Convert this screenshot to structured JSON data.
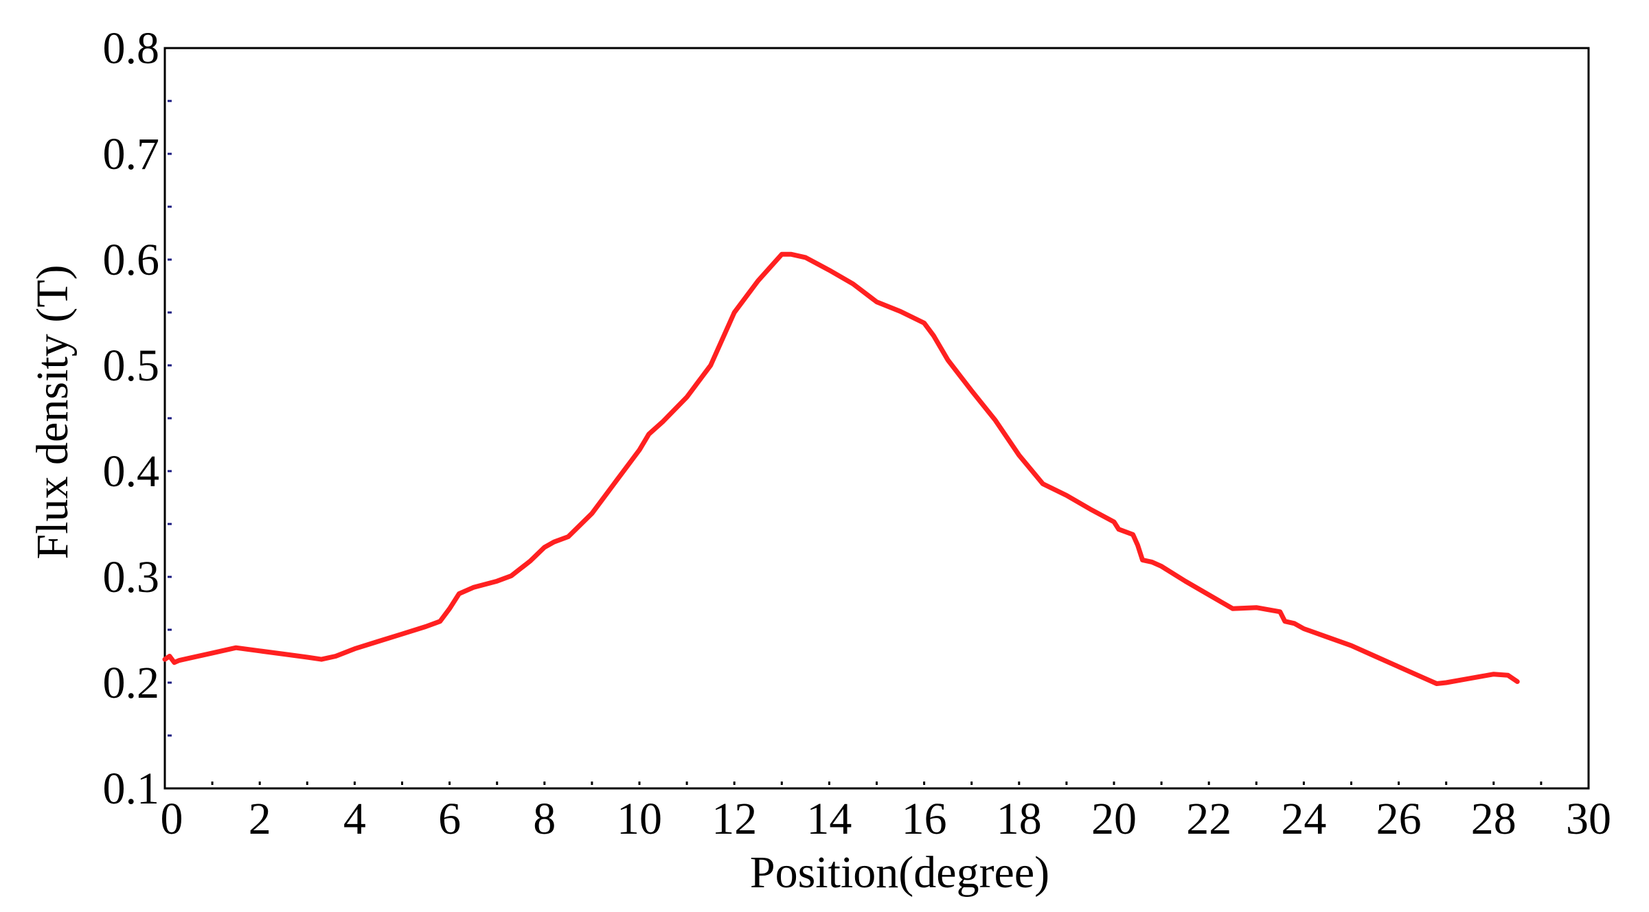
{
  "chart_data": {
    "type": "line",
    "title": "",
    "xlabel": "Position(degree)",
    "ylabel": "Flux density (T)",
    "xlim": [
      0,
      30
    ],
    "ylim": [
      0.1,
      0.8
    ],
    "x_ticks": [
      "0",
      "2",
      "4",
      "6",
      "8",
      "10",
      "12",
      "14",
      "16",
      "18",
      "20",
      "22",
      "24",
      "26",
      "28",
      "30"
    ],
    "y_ticks": [
      "0.1",
      "0.2",
      "0.3",
      "0.4",
      "0.5",
      "0.6",
      "0.7",
      "0.8"
    ],
    "grid": false,
    "colors": {
      "line": "#ff2020",
      "axes": "#000000",
      "minor_ticks": "#1a1a80"
    },
    "series": [
      {
        "x": [
          0,
          0.1,
          0.2,
          0.3,
          0.5,
          1.0,
          1.5,
          2.0,
          2.5,
          3.0,
          3.3,
          3.6,
          4.0,
          4.5,
          5.0,
          5.5,
          5.8,
          6.0,
          6.2,
          6.5,
          7.0,
          7.3,
          7.7,
          8.0,
          8.2,
          8.5,
          9.0,
          9.5,
          10.0,
          10.2,
          10.5,
          11.0,
          11.5,
          12.0,
          12.5,
          13.0,
          13.2,
          13.5,
          14.0,
          14.5,
          15.0,
          15.5,
          16.0,
          16.2,
          16.5,
          17.0,
          17.5,
          18.0,
          18.5,
          19.0,
          19.5,
          20.0,
          20.1,
          20.4,
          20.5,
          20.6,
          20.8,
          21.0,
          21.5,
          22.0,
          22.5,
          23.0,
          23.5,
          23.6,
          23.8,
          24.0,
          24.5,
          25.0,
          25.5,
          26.0,
          26.5,
          26.8,
          27.0,
          27.5,
          28.0,
          28.3,
          28.5
        ],
        "y": [
          0.222,
          0.225,
          0.219,
          0.221,
          0.223,
          0.228,
          0.233,
          0.23,
          0.227,
          0.224,
          0.222,
          0.225,
          0.232,
          0.239,
          0.246,
          0.253,
          0.258,
          0.27,
          0.284,
          0.29,
          0.296,
          0.301,
          0.315,
          0.328,
          0.333,
          0.338,
          0.36,
          0.39,
          0.42,
          0.435,
          0.447,
          0.47,
          0.5,
          0.55,
          0.58,
          0.605,
          0.605,
          0.602,
          0.59,
          0.577,
          0.56,
          0.551,
          0.54,
          0.528,
          0.505,
          0.476,
          0.448,
          0.415,
          0.388,
          0.377,
          0.364,
          0.352,
          0.345,
          0.34,
          0.33,
          0.316,
          0.314,
          0.31,
          0.296,
          0.283,
          0.27,
          0.271,
          0.267,
          0.258,
          0.256,
          0.251,
          0.243,
          0.235,
          0.225,
          0.215,
          0.205,
          0.199,
          0.2,
          0.204,
          0.208,
          0.207,
          0.201
        ]
      }
    ]
  }
}
